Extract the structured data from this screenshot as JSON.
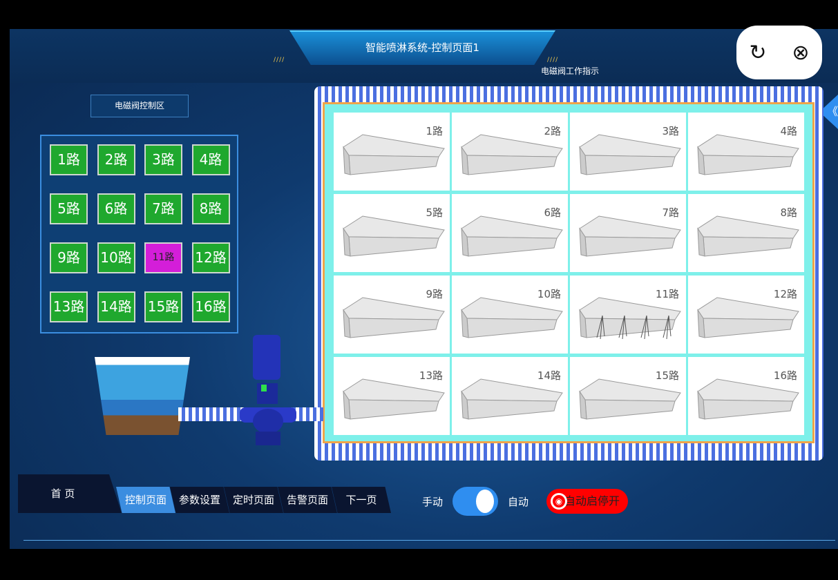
{
  "header": {
    "title": "智能喷淋系统-控制页面1",
    "indicator_label": "电磁阀工作指示",
    "refresh_icon": "↻",
    "close_icon": "⊗",
    "side_icon": "《"
  },
  "control_zone": {
    "label": "电磁阀控制区",
    "buttons": [
      {
        "label": "1路",
        "active": false
      },
      {
        "label": "2路",
        "active": false
      },
      {
        "label": "3路",
        "active": false
      },
      {
        "label": "4路",
        "active": false
      },
      {
        "label": "5路",
        "active": false
      },
      {
        "label": "6路",
        "active": false
      },
      {
        "label": "7路",
        "active": false
      },
      {
        "label": "8路",
        "active": false
      },
      {
        "label": "9路",
        "active": false
      },
      {
        "label": "10路",
        "active": false
      },
      {
        "label": "11路",
        "active": true
      },
      {
        "label": "12路",
        "active": false
      },
      {
        "label": "13路",
        "active": false
      },
      {
        "label": "14路",
        "active": false
      },
      {
        "label": "15路",
        "active": false
      },
      {
        "label": "16路",
        "active": false
      }
    ]
  },
  "indicators": [
    {
      "label": "1路",
      "spraying": false
    },
    {
      "label": "2路",
      "spraying": false
    },
    {
      "label": "3路",
      "spraying": false
    },
    {
      "label": "4路",
      "spraying": false
    },
    {
      "label": "5路",
      "spraying": false
    },
    {
      "label": "6路",
      "spraying": false
    },
    {
      "label": "7路",
      "spraying": false
    },
    {
      "label": "8路",
      "spraying": false
    },
    {
      "label": "9路",
      "spraying": false
    },
    {
      "label": "10路",
      "spraying": false
    },
    {
      "label": "11路",
      "spraying": true
    },
    {
      "label": "12路",
      "spraying": false
    },
    {
      "label": "13路",
      "spraying": false
    },
    {
      "label": "14路",
      "spraying": false
    },
    {
      "label": "15路",
      "spraying": false
    },
    {
      "label": "16路",
      "spraying": false
    }
  ],
  "nav": {
    "home": "首 页",
    "tabs": [
      {
        "label": "控制页面",
        "active": true
      },
      {
        "label": "参数设置"
      },
      {
        "label": "定时页面"
      },
      {
        "label": "告警页面"
      },
      {
        "label": "下一页"
      }
    ]
  },
  "mode": {
    "manual": "手动",
    "auto": "自动",
    "toggle_state": "auto",
    "start_button": "自动启停开",
    "start_icon": "◉"
  },
  "colors": {
    "valve_off": "#1fa82e",
    "valve_on": "#d41ed9",
    "accent": "#2f8ef0",
    "start": "#ff0000"
  }
}
